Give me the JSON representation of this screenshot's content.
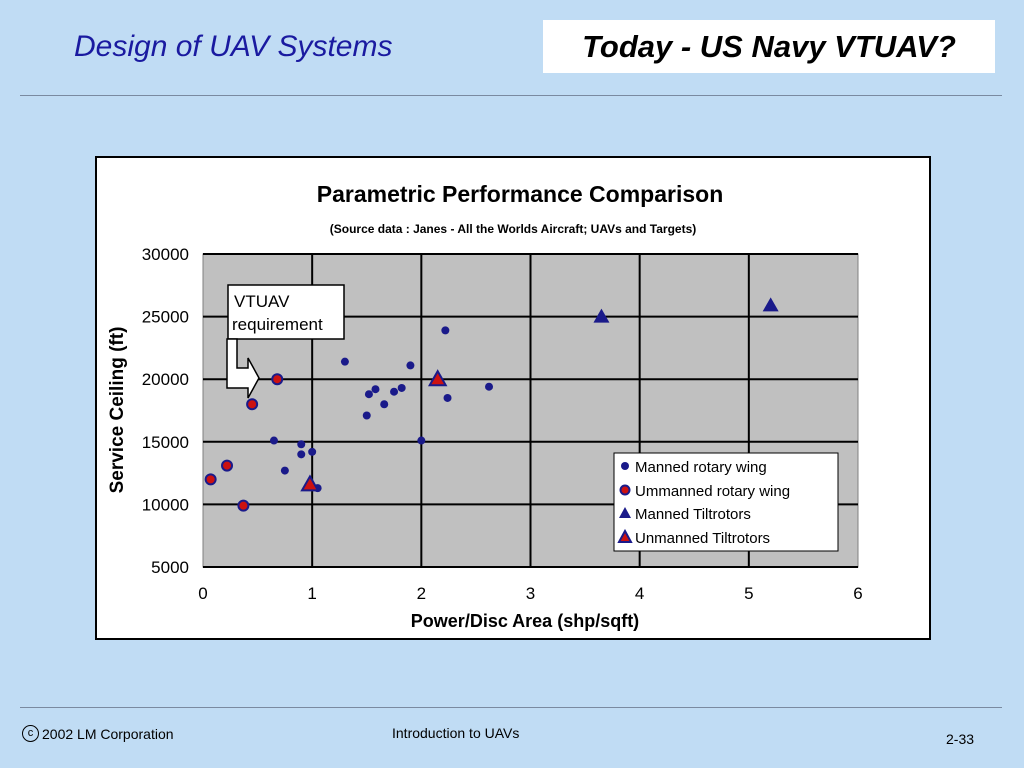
{
  "header": {
    "title": "Design of UAV Systems",
    "slide_title": "Today - US Navy VTUAV?"
  },
  "footer": {
    "copyright_symbol": "c",
    "copyright": "2002 LM Corporation",
    "course": "Introduction to UAVs",
    "page": "2-33"
  },
  "chart_data": {
    "type": "scatter",
    "title": "Parametric Performance Comparison",
    "subtitle": "(Source data : Janes - All the Worlds Aircraft; UAVs and Targets)",
    "xlabel": "Power/Disc Area (shp/sqft)",
    "ylabel": "Service Ceiling (ft)",
    "xlim": [
      0,
      6
    ],
    "ylim": [
      5000,
      30000
    ],
    "x_ticks": [
      "0",
      "1",
      "2",
      "3",
      "4",
      "5",
      "6"
    ],
    "y_ticks": [
      "5000",
      "10000",
      "15000",
      "20000",
      "25000",
      "30000"
    ],
    "grid": true,
    "legend_position": "lower-right",
    "colors": {
      "manned": "#1a1a8a",
      "unmanned": "#cc1111",
      "plot_bg": "#c0c0c0"
    },
    "series": [
      {
        "name": "Manned rotary wing",
        "marker": "circle",
        "points": [
          [
            0.65,
            15100
          ],
          [
            0.75,
            12700
          ],
          [
            0.9,
            14800
          ],
          [
            0.9,
            14000
          ],
          [
            1.0,
            14200
          ],
          [
            1.05,
            11300
          ],
          [
            1.3,
            21400
          ],
          [
            1.5,
            17100
          ],
          [
            1.52,
            18800
          ],
          [
            1.58,
            19200
          ],
          [
            1.66,
            18000
          ],
          [
            1.75,
            19000
          ],
          [
            1.82,
            19300
          ],
          [
            1.9,
            21100
          ],
          [
            2.0,
            15100
          ],
          [
            2.22,
            23900
          ],
          [
            2.24,
            18500
          ],
          [
            2.62,
            19400
          ]
        ]
      },
      {
        "name": "Ummanned rotary wing",
        "marker": "circle",
        "points": [
          [
            0.07,
            12000
          ],
          [
            0.22,
            13100
          ],
          [
            0.37,
            9900
          ],
          [
            0.45,
            18000
          ],
          [
            0.68,
            20000
          ]
        ]
      },
      {
        "name": "Manned Tiltrotors",
        "marker": "triangle",
        "points": [
          [
            3.65,
            25000
          ],
          [
            5.2,
            25900
          ]
        ]
      },
      {
        "name": "Unmanned Tiltrotors",
        "marker": "triangle",
        "points": [
          [
            0.98,
            11600
          ],
          [
            2.15,
            20000
          ]
        ]
      }
    ],
    "annotation": {
      "lines": [
        "VTUAV",
        "requirement"
      ]
    }
  }
}
